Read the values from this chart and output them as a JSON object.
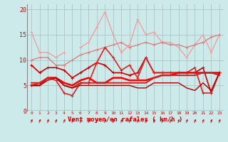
{
  "xlabel": "Vent moyen/en rafales ( km/h )",
  "background_color": "#cceaea",
  "grid_color": "#aabbbb",
  "x": [
    0,
    1,
    2,
    3,
    4,
    5,
    6,
    7,
    8,
    9,
    10,
    11,
    12,
    13,
    14,
    15,
    16,
    17,
    18,
    19,
    20,
    21,
    22,
    23
  ],
  "ylim": [
    0,
    21
  ],
  "yticks": [
    0,
    5,
    10,
    15,
    20
  ],
  "xlim": [
    -0.5,
    23.5
  ],
  "series": [
    {
      "y": [
        15.5,
        11.5,
        11.5,
        10.5,
        11.5,
        null,
        12.5,
        13.5,
        16.5,
        19.5,
        15.0,
        11.5,
        13.0,
        18.0,
        15.0,
        15.5,
        13.5,
        13.5,
        12.5,
        10.5,
        13.0,
        15.0,
        11.5,
        15.0
      ],
      "color": "#f0a0a0",
      "lw": 1.0,
      "marker": "+"
    },
    {
      "y": [
        10.0,
        10.5,
        10.5,
        9.0,
        9.0,
        10.0,
        11.0,
        11.5,
        12.0,
        12.5,
        13.0,
        13.5,
        12.5,
        13.0,
        13.5,
        13.0,
        13.5,
        13.0,
        13.0,
        12.5,
        13.0,
        13.5,
        14.5,
        15.0
      ],
      "color": "#e08080",
      "lw": 1.0,
      "marker": "+"
    },
    {
      "y": [
        9.0,
        7.5,
        8.5,
        8.5,
        8.0,
        6.5,
        7.5,
        8.5,
        9.5,
        9.0,
        7.5,
        7.5,
        7.0,
        7.5,
        10.5,
        7.5,
        7.5,
        7.5,
        7.5,
        7.5,
        7.5,
        8.5,
        3.5,
        7.5
      ],
      "color": "#cc0000",
      "lw": 1.2,
      "marker": "+"
    },
    {
      "y": [
        5.0,
        5.5,
        6.5,
        6.0,
        3.5,
        3.0,
        5.5,
        5.5,
        9.5,
        12.5,
        10.5,
        8.0,
        9.0,
        6.5,
        10.5,
        7.5,
        7.5,
        7.5,
        7.5,
        7.5,
        8.5,
        3.5,
        3.5,
        7.5
      ],
      "color": "#dd2222",
      "lw": 1.2,
      "marker": "+"
    },
    {
      "y": [
        5.0,
        5.0,
        6.5,
        6.5,
        5.5,
        5.0,
        6.0,
        6.5,
        5.5,
        5.5,
        6.5,
        6.5,
        6.0,
        6.0,
        6.0,
        6.5,
        7.0,
        7.0,
        7.5,
        7.5,
        7.5,
        7.5,
        7.5,
        7.5
      ],
      "color": "#ff0000",
      "lw": 1.8,
      "marker": null
    },
    {
      "y": [
        5.5,
        5.5,
        6.5,
        6.5,
        5.0,
        4.5,
        5.5,
        5.5,
        5.5,
        5.5,
        5.5,
        5.5,
        5.5,
        5.5,
        5.5,
        6.5,
        7.0,
        7.0,
        7.0,
        7.0,
        7.0,
        7.5,
        7.5,
        7.0
      ],
      "color": "#cc2222",
      "lw": 1.4,
      "marker": null
    },
    {
      "y": [
        5.0,
        5.0,
        6.0,
        6.5,
        5.0,
        4.5,
        5.0,
        5.0,
        5.0,
        5.0,
        5.0,
        5.0,
        5.0,
        4.5,
        4.5,
        5.5,
        5.5,
        5.5,
        5.5,
        4.5,
        4.0,
        5.5,
        4.0,
        7.5
      ],
      "color": "#aa0000",
      "lw": 1.0,
      "marker": null
    }
  ],
  "arrow_color": "#cc0000",
  "tick_color": "#cc0000",
  "spine_color": "#888888"
}
